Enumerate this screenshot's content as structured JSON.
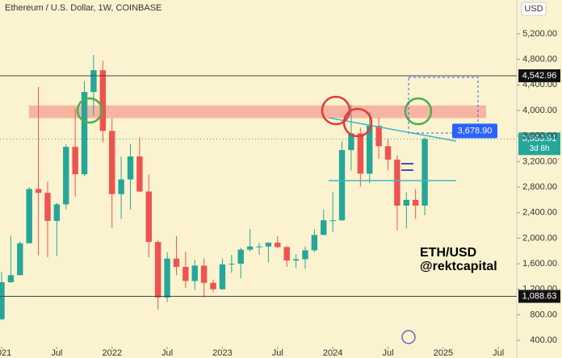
{
  "chart_data": {
    "type": "candlestick",
    "title": "Ethereum / U.S. Dollar, 1W, COINBASE",
    "currency": "USD",
    "annotation_pair": "ETH/USD",
    "annotation_author": "@rektcapital",
    "x": [
      "2021-01",
      "2021-02",
      "2021-03",
      "2021-04",
      "2021-05",
      "2021-06",
      "2021-07",
      "2021-08",
      "2021-09",
      "2021-10",
      "2021-11",
      "2021-12",
      "2022-01",
      "2022-02",
      "2022-03",
      "2022-04",
      "2022-05",
      "2022-06",
      "2022-07",
      "2022-08",
      "2022-09",
      "2022-10",
      "2022-11",
      "2022-12",
      "2023-01",
      "2023-02",
      "2023-03",
      "2023-04",
      "2023-05",
      "2023-06",
      "2023-07",
      "2023-08",
      "2023-09",
      "2023-10",
      "2023-11",
      "2023-12",
      "2024-01",
      "2024-02",
      "2024-03",
      "2024-04",
      "2024-05",
      "2024-06",
      "2024-07",
      "2024-08",
      "2024-09",
      "2024-10",
      "2024-11"
    ],
    "open": [
      730,
      1310,
      1420,
      1920,
      2770,
      2710,
      2270,
      2530,
      3430,
      3000,
      4290,
      4630,
      3680,
      2690,
      2920,
      3280,
      2730,
      1940,
      1070,
      1680,
      1550,
      1330,
      1570,
      1300,
      1200,
      1590,
      1600,
      1820,
      1870,
      1870,
      1930,
      1860,
      1650,
      1670,
      1810,
      2050,
      2280,
      2280,
      3380,
      3640,
      3010,
      3760,
      3440,
      3230,
      2510,
      2600,
      2510
    ],
    "high": [
      1470,
      2040,
      1950,
      2800,
      4370,
      2890,
      2550,
      3470,
      4030,
      4460,
      4870,
      4780,
      3880,
      3280,
      3480,
      3580,
      3000,
      1970,
      1780,
      2030,
      1790,
      1660,
      1680,
      1350,
      1680,
      1740,
      1850,
      2140,
      1930,
      1930,
      2030,
      1880,
      1750,
      1870,
      2140,
      2450,
      2720,
      3520,
      4090,
      3730,
      3980,
      3890,
      3560,
      3300,
      2720,
      2770,
      3580
    ],
    "low": [
      715,
      1300,
      1450,
      1930,
      1730,
      1700,
      1720,
      2450,
      2650,
      2970,
      3920,
      3500,
      2160,
      2300,
      2450,
      2720,
      1700,
      880,
      1000,
      1420,
      1220,
      1190,
      1070,
      1150,
      1190,
      1460,
      1370,
      1790,
      1740,
      1620,
      1840,
      1550,
      1530,
      1520,
      1780,
      2050,
      2100,
      2270,
      3060,
      2810,
      2860,
      3240,
      3060,
      2120,
      2150,
      2300,
      2360
    ],
    "close": [
      1310,
      1420,
      1920,
      2770,
      2710,
      2270,
      2530,
      3430,
      3000,
      4290,
      4630,
      3680,
      2690,
      2920,
      3280,
      2730,
      1940,
      1070,
      1680,
      1550,
      1330,
      1570,
      1300,
      1200,
      1590,
      1600,
      1820,
      1870,
      1870,
      1930,
      1860,
      1650,
      1670,
      1810,
      2050,
      2280,
      2280,
      3380,
      3640,
      3010,
      3760,
      3440,
      3230,
      2510,
      2600,
      2510,
      3553.91
    ],
    "up_color": "#26a69a",
    "down_color": "#ef5350",
    "xlim": [
      "2021-01",
      "2025-09"
    ],
    "xticks": [
      {
        "value": "2021-01",
        "label": "2021"
      },
      {
        "value": "2021-07",
        "label": "Jul"
      },
      {
        "value": "2022-01",
        "label": "2022"
      },
      {
        "value": "2022-07",
        "label": "Jul"
      },
      {
        "value": "2023-01",
        "label": "2023"
      },
      {
        "value": "2023-07",
        "label": "Jul"
      },
      {
        "value": "2024-01",
        "label": "2024"
      },
      {
        "value": "2024-07",
        "label": "Jul"
      },
      {
        "value": "2025-01",
        "label": "2025"
      },
      {
        "value": "2025-07",
        "label": "Jul"
      }
    ],
    "ylim": [
      300,
      5730
    ],
    "yticks": [
      {
        "value": 400,
        "label": "400.00"
      },
      {
        "value": 800,
        "label": "800.00"
      },
      {
        "value": 1200,
        "label": "1,200.00"
      },
      {
        "value": 1600,
        "label": "1,600.00"
      },
      {
        "value": 2000,
        "label": "2,000.00"
      },
      {
        "value": 2400,
        "label": "2,400.00"
      },
      {
        "value": 2800,
        "label": "2,800.00"
      },
      {
        "value": 3200,
        "label": "3,200.00"
      },
      {
        "value": 3600,
        "label": "3,600.00"
      },
      {
        "value": 4000,
        "label": "4,000.00"
      },
      {
        "value": 4400,
        "label": "4,400.00"
      },
      {
        "value": 4800,
        "label": "4,800.00"
      },
      {
        "value": 5200,
        "label": "5,200.00"
      }
    ],
    "grid": false,
    "levels": [
      {
        "value": 4542.96,
        "label": "4,542.96"
      },
      {
        "value": 1088.63,
        "label": "1,088.63"
      }
    ],
    "resistance_zone": [
      3880,
      4080
    ],
    "zone_color": "#f4a99a",
    "measure_label": {
      "value": 3678.9,
      "label": "3,678.90"
    },
    "last_price": {
      "value": 3553.91,
      "label": "3,553.91"
    },
    "countdown": "3d 8h"
  }
}
